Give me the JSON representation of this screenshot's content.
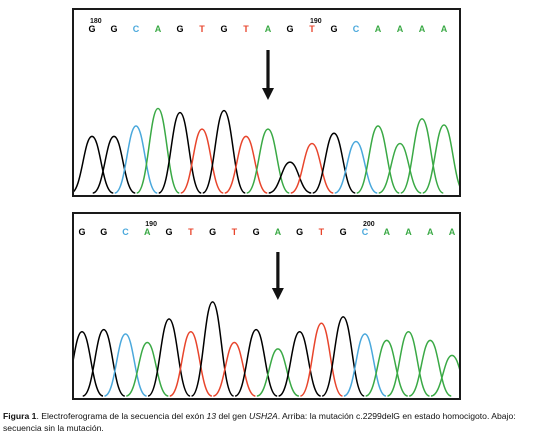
{
  "colors": {
    "G": "#000000",
    "C": "#4aa8dc",
    "A": "#3aa945",
    "T": "#e8452c"
  },
  "top_panel": {
    "sequence": [
      "G",
      "G",
      "C",
      "A",
      "G",
      "T",
      "G",
      "T",
      "A",
      "G",
      "T",
      "G",
      "C",
      "A",
      "A",
      "A",
      "A"
    ],
    "position_labels": [
      {
        "text": "180",
        "base_index": 0
      },
      {
        "text": "190",
        "base_index": 10
      }
    ],
    "arrow_icon": "down-arrow-icon",
    "peak_heights": [
      0.55,
      0.55,
      0.65,
      0.82,
      0.78,
      0.62,
      0.8,
      0.55,
      0.62,
      0.3,
      0.48,
      0.58,
      0.5,
      0.65,
      0.48,
      0.72,
      0.66
    ]
  },
  "bottom_panel": {
    "sequence": [
      "G",
      "G",
      "C",
      "A",
      "G",
      "T",
      "G",
      "T",
      "G",
      "A",
      "G",
      "T",
      "G",
      "C",
      "A",
      "A",
      "A",
      "A"
    ],
    "position_labels": [
      {
        "text": "190",
        "base_index": 3
      },
      {
        "text": "200",
        "base_index": 13
      }
    ],
    "arrow_icon": "down-arrow-icon",
    "peak_heights": [
      0.6,
      0.62,
      0.58,
      0.5,
      0.72,
      0.6,
      0.88,
      0.5,
      0.62,
      0.44,
      0.6,
      0.68,
      0.74,
      0.58,
      0.52,
      0.6,
      0.52,
      0.38
    ]
  },
  "caption": {
    "label": "Figura 1",
    "text_1": ". Electroferograma de la secuencia del exón ",
    "exon": "13",
    "text_2": " del gen ",
    "gene": "USH2A",
    "text_3": ". Arriba: la mutación c.2299delG en estado homocigoto. Abajo: secuencia sin la mutación."
  }
}
